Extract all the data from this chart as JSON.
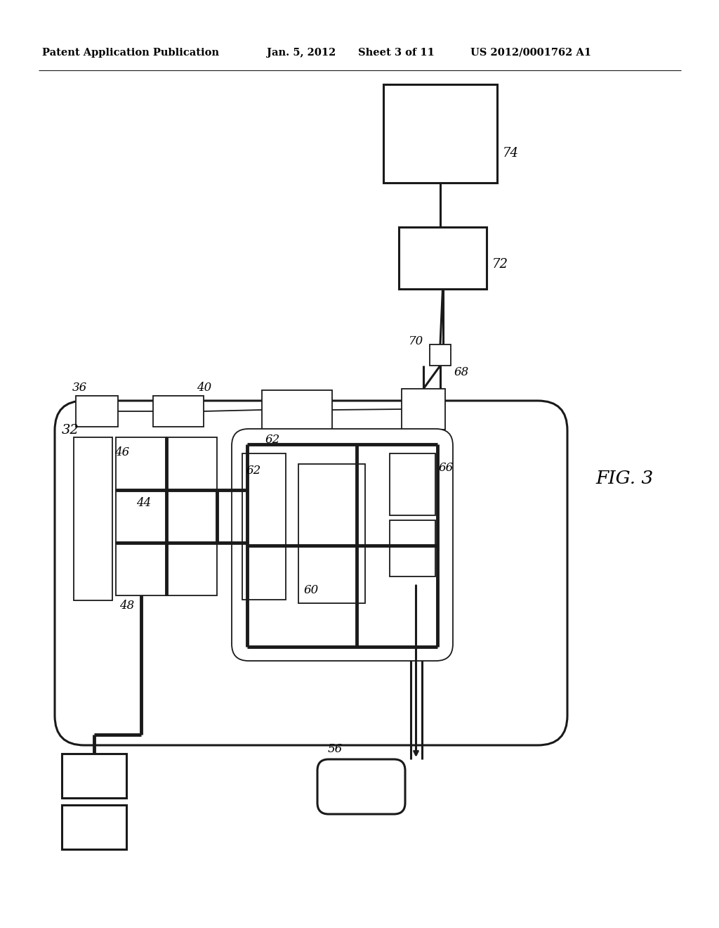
{
  "bg_color": "#ffffff",
  "line_color": "#1a1a1a",
  "header_text": "Patent Application Publication",
  "header_date": "Jan. 5, 2012",
  "header_sheet": "Sheet 3 of 11",
  "header_patent": "US 2012/0001762 A1",
  "fig_label": "FIG. 3"
}
